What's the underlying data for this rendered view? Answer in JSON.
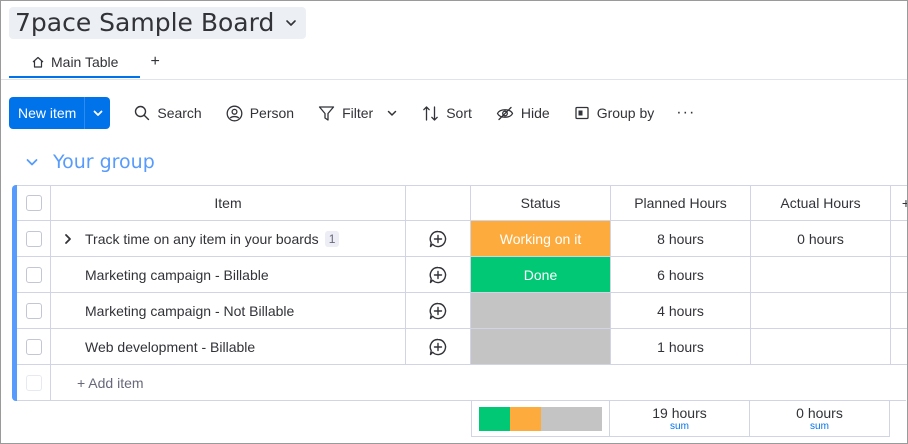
{
  "board": {
    "title": "7pace Sample Board"
  },
  "tabs": [
    {
      "label": "Main Table"
    }
  ],
  "tab_add_label": "+",
  "toolbar": {
    "new_item": "New item",
    "search": "Search",
    "person": "Person",
    "filter": "Filter",
    "sort": "Sort",
    "hide": "Hide",
    "group_by": "Group by",
    "more": "···"
  },
  "group": {
    "name": "Your group",
    "color": "#579bfc"
  },
  "columns": {
    "item": "Item",
    "status": "Status",
    "planned": "Planned Hours",
    "actual": "Actual Hours",
    "add": "+"
  },
  "rows": [
    {
      "name": "Track time on any item in your boards",
      "subitems": "1",
      "status": "Working on it",
      "status_color": "#fdab3d",
      "planned": "8 hours",
      "actual": "0 hours"
    },
    {
      "name": "Marketing campaign - Billable",
      "status": "Done",
      "status_color": "#00c875",
      "planned": "6 hours",
      "actual": ""
    },
    {
      "name": "Marketing campaign - Not Billable",
      "status": "",
      "status_color": "#c4c4c4",
      "planned": "4 hours",
      "actual": ""
    },
    {
      "name": "Web development - Billable",
      "status": "",
      "status_color": "#c4c4c4",
      "planned": "1 hours",
      "actual": ""
    }
  ],
  "add_item": "+ Add item",
  "summary": {
    "status_distribution": [
      {
        "color": "#00c875",
        "fraction": 0.25
      },
      {
        "color": "#fdab3d",
        "fraction": 0.25
      },
      {
        "color": "#c4c4c4",
        "fraction": 0.5
      }
    ],
    "planned_total": "19 hours",
    "planned_label": "sum",
    "actual_total": "0 hours",
    "actual_label": "sum"
  }
}
